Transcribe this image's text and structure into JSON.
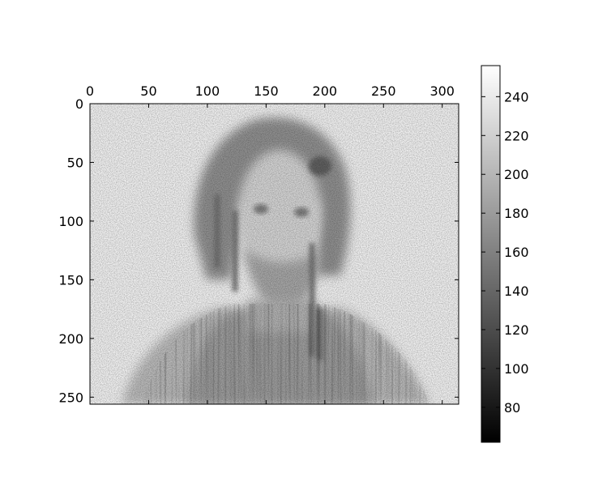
{
  "chart_data": {
    "type": "heatmap",
    "title": "",
    "xlabel": "",
    "ylabel": "",
    "colormap": "gray",
    "image_width": 314,
    "image_height": 256,
    "xlim": [
      0,
      314
    ],
    "ylim": [
      256,
      0
    ],
    "x_ticks": [
      0,
      50,
      100,
      150,
      200,
      250,
      300
    ],
    "y_ticks": [
      0,
      50,
      100,
      150,
      200,
      250
    ],
    "x_tick_position": "top",
    "grid": false,
    "colorbar": {
      "vmin": 62,
      "vmax": 256,
      "ticks": [
        80,
        100,
        120,
        140,
        160,
        180,
        200,
        220,
        240
      ]
    },
    "content": "noisy grayscale photograph of a person (head and shoulders)",
    "mean_intensity_levels": {
      "background": 238,
      "face": 205,
      "hair_and_clothing": 165,
      "darkest_strokes": 110
    }
  }
}
